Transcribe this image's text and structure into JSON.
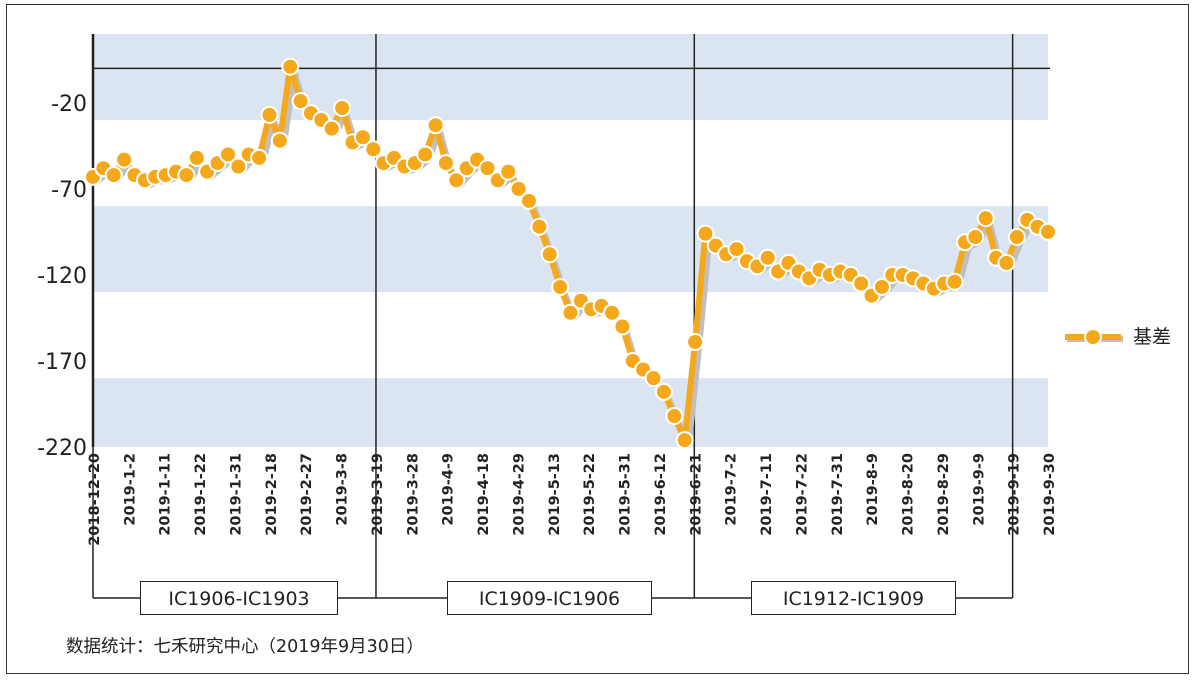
{
  "chart_data": {
    "type": "line",
    "title": "",
    "xlabel": "",
    "ylabel": "",
    "ylim": [
      -220,
      20
    ],
    "yticks": [
      -20,
      -70,
      -120,
      -170,
      -220
    ],
    "y_tick_labels": [
      "-20",
      "-70",
      "-120",
      "-170",
      "-220"
    ],
    "x_tick_labels": [
      "2018-12-20",
      "2019-1-2",
      "2019-1-11",
      "2019-1-22",
      "2019-1-31",
      "2019-2-18",
      "2019-2-27",
      "2019-3-8",
      "2019-3-19",
      "2019-3-28",
      "2019-4-9",
      "2019-4-18",
      "2019-4-29",
      "2019-5-13",
      "2019-5-22",
      "2019-5-31",
      "2019-6-12",
      "2019-6-21",
      "2019-7-2",
      "2019-7-11",
      "2019-7-22",
      "2019-7-31",
      "2019-8-9",
      "2019-8-20",
      "2019-8-29",
      "2019-9-9",
      "2019-9-19",
      "2019-9-30"
    ],
    "background_bands": "alternating light-blue / white horizontal bands every 50 units",
    "reference_line_y": 0,
    "series": [
      {
        "name": "基差",
        "color": "#f5a81c",
        "marker": "circle",
        "values": [
          -63,
          -58,
          -62,
          -53,
          -62,
          -65,
          -63,
          -62,
          -60,
          -62,
          -52,
          -60,
          -55,
          -50,
          -57,
          -50,
          -52,
          -27,
          -42,
          1,
          -19,
          -26,
          -30,
          -35,
          -23,
          -43,
          -40,
          -47,
          -55,
          -52,
          -57,
          -55,
          -50,
          -33,
          -55,
          -65,
          -58,
          -53,
          -58,
          -65,
          -60,
          -70,
          -77,
          -92,
          -108,
          -127,
          -142,
          -135,
          -140,
          -138,
          -142,
          -150,
          -170,
          -175,
          -180,
          -188,
          -202,
          -216,
          -159,
          -96,
          -103,
          -108,
          -105,
          -112,
          -115,
          -110,
          -118,
          -113,
          -118,
          -122,
          -117,
          -120,
          -118,
          -120,
          -125,
          -132,
          -127,
          -120,
          -120,
          -122,
          -125,
          -128,
          -125,
          -124,
          -101,
          -98,
          -87,
          -110,
          -113,
          -98,
          -88,
          -92,
          -95
        ]
      }
    ],
    "legend": {
      "position": "right",
      "entries": [
        "基差"
      ]
    },
    "period_dividers_at": [
      "2018-12-20",
      "2019-3-19",
      "2019-6-21",
      "2019-9-19"
    ],
    "period_labels": [
      "IC1906-IC1903",
      "IC1909-IC1906",
      "IC1912-IC1909"
    ]
  },
  "footer": {
    "source_note": "数据统计：七禾研究中心（2019年9月30日）"
  },
  "colors": {
    "band": "#dbe5f1",
    "line": "#f5a81c",
    "shadow": "#bfbfbf",
    "marker_edge": "#ffffff",
    "axis": "#222222"
  }
}
